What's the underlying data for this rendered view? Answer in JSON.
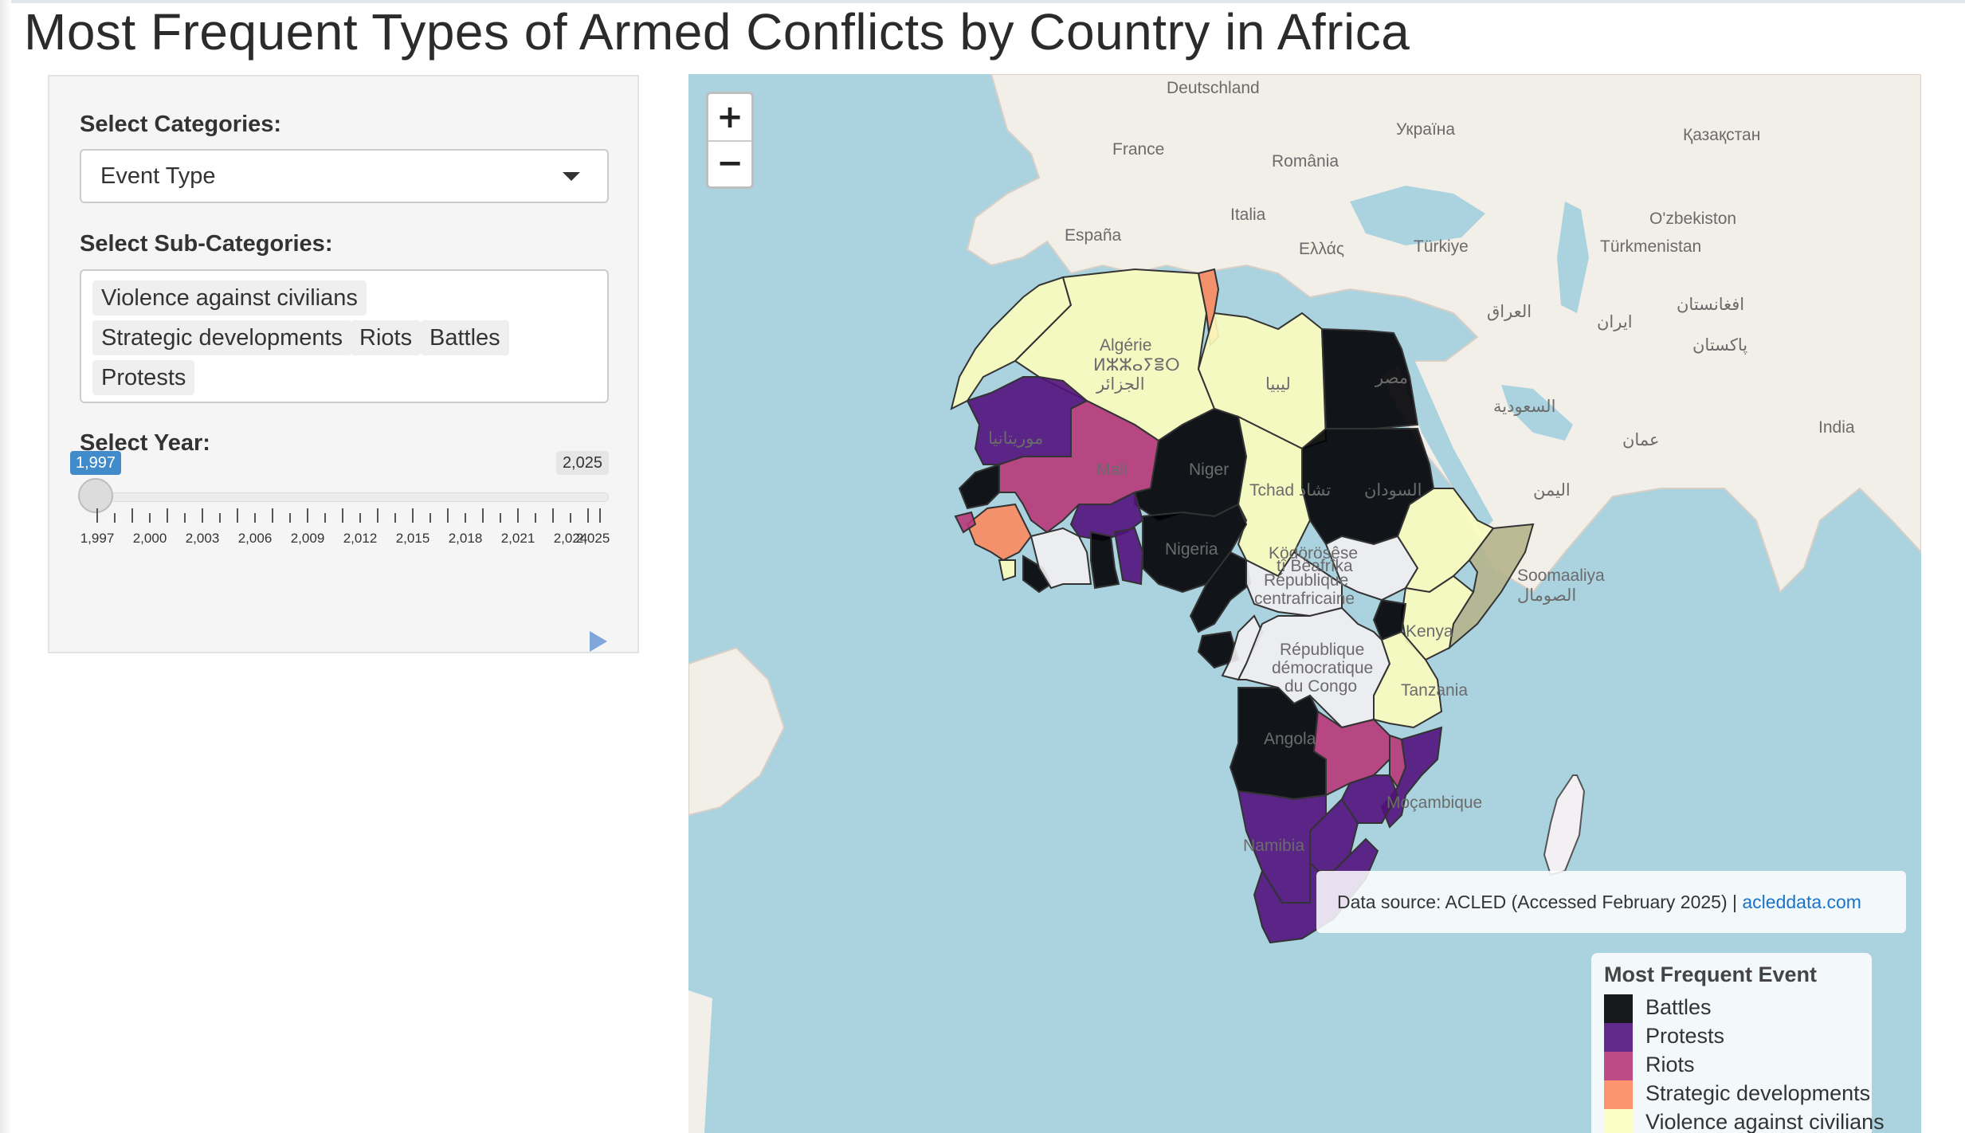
{
  "page": {
    "title": "Most Frequent Types of Armed Conflicts by Country in Africa"
  },
  "sidebar": {
    "category_label": "Select Categories:",
    "category_value": "Event Type",
    "subcategory_label": "Select Sub-Categories:",
    "subcategories": [
      "Violence against civilians",
      "Strategic developments",
      "Riots",
      "Battles",
      "Protests"
    ],
    "year_label": "Select Year:",
    "year_min": "1,997",
    "year_max": "2,025",
    "year_selected": "1,997",
    "year_ticks": [
      "1,997",
      "2,000",
      "2,003",
      "2,006",
      "2,009",
      "2,012",
      "2,015",
      "2,018",
      "2,021",
      "2,024",
      "2,025"
    ]
  },
  "map": {
    "zoom_in_label": "+",
    "zoom_out_label": "−",
    "places": [
      "Deutschland",
      "Україна",
      "France",
      "România",
      "Қазақстан",
      "Italia",
      "O'zbekiston",
      "España",
      "Ελλάς",
      "Türkiye",
      "Türkmenistan",
      "العراق",
      "ایران",
      "افغانستان",
      "پاکستان",
      "Algérie",
      "ⵍⵣⵣⴰⵢⴻⵔ",
      "الجزائر",
      "ليبيا",
      "مصر",
      "السعودية",
      "India",
      "عمان",
      "موريتانيا",
      "Mali",
      "Niger",
      "السودان",
      "اليمن",
      "Tchad تشاد",
      "Nigeria",
      "Soomaaliya",
      "الصومال",
      "Ködörösêse",
      "tî Bêafrîka",
      "République",
      "centrafricaine",
      "Kenya",
      "République",
      "démocratique",
      "du Congo",
      "Tanzania",
      "Angola",
      "Moçambique",
      "Namibia"
    ],
    "attribution_text": "Data source: ACLED (Accessed February 2025) | ",
    "attribution_link": "acleddata.com",
    "legend": {
      "title": "Most Frequent Event",
      "items": [
        {
          "label": "Battles",
          "color": "#000004"
        },
        {
          "label": "Protests",
          "color": "#51127c"
        },
        {
          "label": "Riots",
          "color": "#b73779"
        },
        {
          "label": "Strategic developments",
          "color": "#fc8961"
        },
        {
          "label": "Violence against civilians",
          "color": "#fcfdbf"
        }
      ]
    }
  }
}
